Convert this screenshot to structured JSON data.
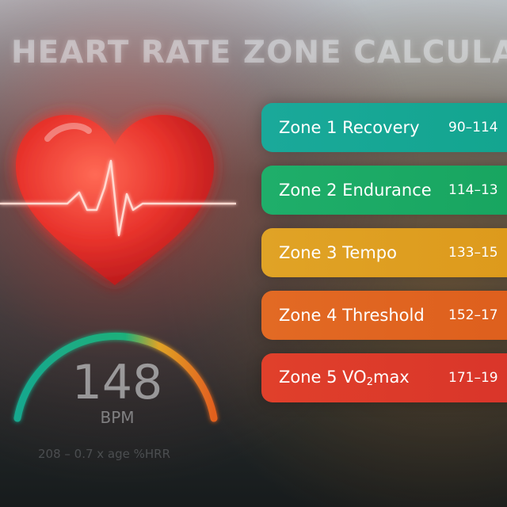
{
  "title": "HEART RATE ZONE CALCULATOR",
  "gauge": {
    "value": "148",
    "unit": "BPM",
    "formula": "208 – 0.7 x age %HRR"
  },
  "icons": {
    "heart": "heart-icon",
    "pulse": "ecg-line-icon"
  },
  "colors": {
    "zone1": "#1aa99a",
    "zone2": "#1fae6a",
    "zone3": "#e0a326",
    "zone4": "#e26a24",
    "zone5": "#e0402b",
    "heart": "#e8332c"
  },
  "zones": [
    {
      "label": "Zone 1 Recovery",
      "range": "90–114"
    },
    {
      "label": "Zone 2 Endurance",
      "range": "114–13"
    },
    {
      "label": "Zone 3 Tempo",
      "range": "133–15"
    },
    {
      "label": "Zone 4 Threshold",
      "range": "152–17"
    },
    {
      "label_prefix": "Zone 5 VO",
      "label_sub": "2",
      "label_suffix": "max",
      "range": "171–19"
    }
  ]
}
